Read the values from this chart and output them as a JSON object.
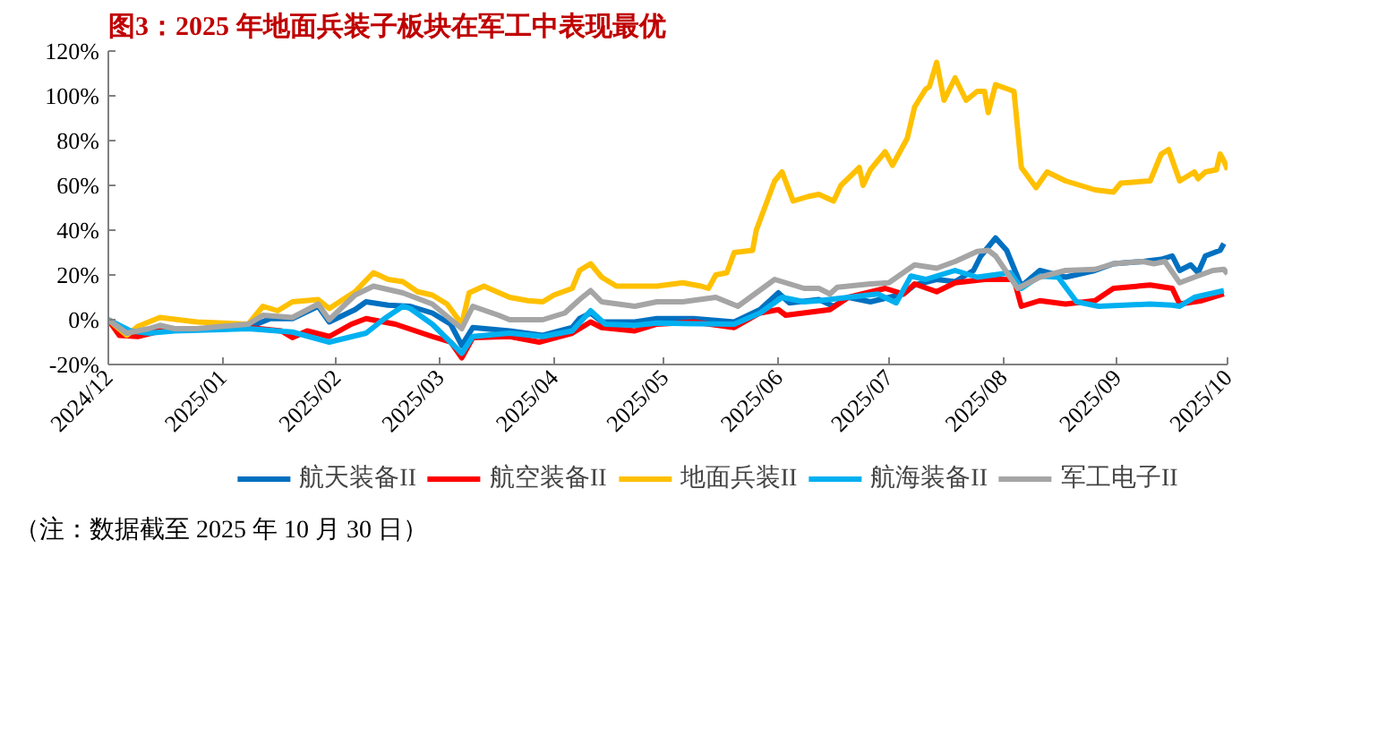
{
  "chart_data": {
    "type": "line",
    "title": "图3：2025 年地面兵装子板块在军工中表现最优",
    "annotations": [
      "（注：数据截至 2025 年 10 月 30 日）"
    ],
    "xlim": [
      "2024-12-01",
      "2025-10-01"
    ],
    "xticks": [
      {
        "value": "2024-12-01",
        "label": "2024/12"
      },
      {
        "value": "2025-01-01",
        "label": "2025/01"
      },
      {
        "value": "2025-02-01",
        "label": "2025/02"
      },
      {
        "value": "2025-03-01",
        "label": "2025/03"
      },
      {
        "value": "2025-04-01",
        "label": "2025/04"
      },
      {
        "value": "2025-05-01",
        "label": "2025/05"
      },
      {
        "value": "2025-06-01",
        "label": "2025/06"
      },
      {
        "value": "2025-07-01",
        "label": "2025/07"
      },
      {
        "value": "2025-08-01",
        "label": "2025/08"
      },
      {
        "value": "2025-09-01",
        "label": "2025/09"
      },
      {
        "value": "2025-10-01",
        "label": "2025/10"
      }
    ],
    "ylim": [
      -20,
      120
    ],
    "yticks": [
      {
        "value": -20,
        "label": "-20%"
      },
      {
        "value": 0,
        "label": "0%"
      },
      {
        "value": 20,
        "label": "20%"
      },
      {
        "value": 40,
        "label": "40%"
      },
      {
        "value": 60,
        "label": "60%"
      },
      {
        "value": 80,
        "label": "80%"
      },
      {
        "value": 100,
        "label": "100%"
      },
      {
        "value": 120,
        "label": "120%"
      }
    ],
    "legend": "bottom",
    "series": [
      {
        "name": "航天装备II",
        "color": "#0070c0",
        "x": [
          "2024-12-01",
          "2024-12-07",
          "2024-12-15",
          "2025-01-08",
          "2025-01-14",
          "2025-01-20",
          "2025-01-27",
          "2025-01-30",
          "2025-02-06",
          "2025-02-09",
          "2025-02-15",
          "2025-02-21",
          "2025-02-27",
          "2025-03-04",
          "2025-03-07",
          "2025-03-10",
          "2025-03-20",
          "2025-03-29",
          "2025-04-06",
          "2025-04-08",
          "2025-04-11",
          "2025-04-14",
          "2025-04-23",
          "2025-04-29",
          "2025-05-09",
          "2025-05-20",
          "2025-05-27",
          "2025-06-01",
          "2025-06-04",
          "2025-06-12",
          "2025-06-16",
          "2025-06-20",
          "2025-06-26",
          "2025-07-05",
          "2025-07-08",
          "2025-07-14",
          "2025-07-19",
          "2025-07-24",
          "2025-07-26",
          "2025-07-30",
          "2025-08-02",
          "2025-08-06",
          "2025-08-11",
          "2025-08-18",
          "2025-08-26",
          "2025-08-31",
          "2025-09-08",
          "2025-09-13",
          "2025-09-16",
          "2025-09-18",
          "2025-09-21",
          "2025-09-23",
          "2025-09-25",
          "2025-09-29",
          "2025-09-30"
        ],
        "values": [
          0,
          -7,
          -5,
          -3.5,
          0.5,
          0.5,
          6,
          -1,
          4.5,
          8,
          6.5,
          6,
          3,
          -2,
          -11.5,
          -3.5,
          -5,
          -7,
          -3.5,
          0.5,
          3,
          -1,
          -1,
          0.5,
          0.5,
          -1,
          4.5,
          12,
          7.5,
          9,
          6,
          10,
          8,
          11.5,
          15.5,
          18,
          17,
          22,
          28.5,
          36.5,
          31,
          15,
          22,
          19,
          22,
          25,
          26,
          27,
          28.5,
          22,
          24.5,
          21,
          28.5,
          31,
          34
        ]
      },
      {
        "name": "航空装备II",
        "color": "#ff0000",
        "x": [
          "2024-12-01",
          "2024-12-04",
          "2024-12-09",
          "2024-12-15",
          "2025-01-08",
          "2025-01-17",
          "2025-01-20",
          "2025-01-24",
          "2025-01-30",
          "2025-02-05",
          "2025-02-09",
          "2025-02-17",
          "2025-02-27",
          "2025-03-04",
          "2025-03-07",
          "2025-03-10",
          "2025-03-20",
          "2025-03-28",
          "2025-04-06",
          "2025-04-11",
          "2025-04-14",
          "2025-04-23",
          "2025-04-29",
          "2025-05-09",
          "2025-05-20",
          "2025-05-27",
          "2025-06-01",
          "2025-06-03",
          "2025-06-15",
          "2025-06-20",
          "2025-06-30",
          "2025-07-05",
          "2025-07-08",
          "2025-07-14",
          "2025-07-19",
          "2025-07-27",
          "2025-08-04",
          "2025-08-06",
          "2025-08-11",
          "2025-08-18",
          "2025-08-26",
          "2025-08-31",
          "2025-09-10",
          "2025-09-16",
          "2025-09-18",
          "2025-09-24",
          "2025-09-30"
        ],
        "values": [
          0,
          -7,
          -7.5,
          -5,
          -3.5,
          -5,
          -8,
          -5,
          -7.5,
          -2,
          0.5,
          -2,
          -7.5,
          -10,
          -17,
          -8,
          -7.5,
          -10,
          -6,
          -1,
          -3.5,
          -5,
          -2,
          -1,
          -3.5,
          3,
          4.5,
          2,
          4.5,
          10,
          14,
          11.5,
          16,
          12.5,
          16.5,
          18,
          18,
          6,
          8.5,
          7,
          8.5,
          14,
          15.5,
          14,
          7,
          8.5,
          11.5
        ]
      },
      {
        "name": "地面兵装II",
        "color": "#ffc000",
        "x": [
          "2024-12-01",
          "2024-12-06",
          "2024-12-09",
          "2024-12-15",
          "2024-12-25",
          "2025-01-08",
          "2025-01-12",
          "2025-01-16",
          "2025-01-20",
          "2025-01-27",
          "2025-01-30",
          "2025-02-06",
          "2025-02-11",
          "2025-02-15",
          "2025-02-19",
          "2025-02-23",
          "2025-02-27",
          "2025-03-03",
          "2025-03-07",
          "2025-03-09",
          "2025-03-13",
          "2025-03-20",
          "2025-03-25",
          "2025-03-29",
          "2025-04-01",
          "2025-04-06",
          "2025-04-08",
          "2025-04-11",
          "2025-04-14",
          "2025-04-18",
          "2025-04-29",
          "2025-05-06",
          "2025-05-11",
          "2025-05-13",
          "2025-05-15",
          "2025-05-18",
          "2025-05-20",
          "2025-05-25",
          "2025-05-26",
          "2025-05-31",
          "2025-06-02",
          "2025-06-05",
          "2025-06-09",
          "2025-06-12",
          "2025-06-16",
          "2025-06-18",
          "2025-06-23",
          "2025-06-24",
          "2025-06-26",
          "2025-06-30",
          "2025-07-02",
          "2025-07-06",
          "2025-07-08",
          "2025-07-11",
          "2025-07-12",
          "2025-07-14",
          "2025-07-16",
          "2025-07-19",
          "2025-07-22",
          "2025-07-25",
          "2025-07-27",
          "2025-07-28",
          "2025-07-30",
          "2025-08-04",
          "2025-08-06",
          "2025-08-10",
          "2025-08-13",
          "2025-08-18",
          "2025-08-22",
          "2025-08-26",
          "2025-08-31",
          "2025-09-02",
          "2025-09-10",
          "2025-09-13",
          "2025-09-15",
          "2025-09-18",
          "2025-09-22",
          "2025-09-23",
          "2025-09-25",
          "2025-09-28",
          "2025-09-29",
          "2025-09-30",
          "2025-10-01"
        ],
        "values": [
          0,
          -7,
          -3,
          1,
          -1,
          -2,
          6,
          4,
          8,
          9,
          5,
          12.5,
          21,
          18,
          17,
          12.5,
          11,
          7,
          -2,
          12,
          15,
          10,
          8.5,
          8,
          11,
          14,
          22,
          25,
          19,
          15,
          15,
          16.5,
          15,
          14,
          20,
          21,
          30,
          31,
          40,
          62,
          66,
          53,
          55,
          56,
          53,
          60,
          68,
          60,
          67,
          75,
          69,
          81,
          95,
          103,
          104,
          115,
          98,
          108,
          98,
          102,
          102,
          92.5,
          105,
          102,
          68,
          59,
          66,
          62,
          60,
          58,
          57,
          61,
          62,
          74,
          76,
          62,
          66,
          63,
          66,
          67,
          74,
          71,
          67
        ]
      },
      {
        "name": "航海装备II",
        "color": "#00b0f0",
        "x": [
          "2024-12-01",
          "2024-12-07",
          "2024-12-12",
          "2024-12-19",
          "2025-01-08",
          "2025-01-20",
          "2025-01-30",
          "2025-02-09",
          "2025-02-14",
          "2025-02-19",
          "2025-02-21",
          "2025-02-27",
          "2025-03-07",
          "2025-03-10",
          "2025-03-20",
          "2025-03-29",
          "2025-04-06",
          "2025-04-11",
          "2025-04-15",
          "2025-04-23",
          "2025-04-29",
          "2025-05-20",
          "2025-05-27",
          "2025-06-02",
          "2025-06-08",
          "2025-06-12",
          "2025-06-20",
          "2025-06-28",
          "2025-07-03",
          "2025-07-07",
          "2025-07-11",
          "2025-07-19",
          "2025-07-25",
          "2025-08-03",
          "2025-08-06",
          "2025-08-11",
          "2025-08-16",
          "2025-08-21",
          "2025-08-27",
          "2025-09-10",
          "2025-09-16",
          "2025-09-18",
          "2025-09-22",
          "2025-09-30"
        ],
        "values": [
          0,
          -5,
          -6,
          -5,
          -4,
          -5.5,
          -10,
          -6,
          0.5,
          6,
          5,
          -2,
          -15,
          -7.5,
          -6,
          -7.5,
          -5,
          4,
          -2,
          -2.5,
          -1.5,
          -2,
          3,
          10,
          8,
          8.5,
          10,
          11.5,
          7.5,
          19.5,
          18,
          22,
          19,
          21,
          14,
          19.5,
          19,
          8,
          6,
          7,
          6.5,
          6,
          10,
          13
        ]
      },
      {
        "name": "军工电子II",
        "color": "#a5a5a5",
        "x": [
          "2024-12-01",
          "2024-12-06",
          "2024-12-12",
          "2024-12-15",
          "2024-12-19",
          "2024-12-25",
          "2025-01-08",
          "2025-01-12",
          "2025-01-20",
          "2025-01-27",
          "2025-01-30",
          "2025-02-06",
          "2025-02-11",
          "2025-02-19",
          "2025-02-27",
          "2025-03-07",
          "2025-03-10",
          "2025-03-17",
          "2025-03-20",
          "2025-03-29",
          "2025-04-04",
          "2025-04-08",
          "2025-04-11",
          "2025-04-14",
          "2025-04-23",
          "2025-04-29",
          "2025-05-06",
          "2025-05-15",
          "2025-05-21",
          "2025-05-31",
          "2025-06-08",
          "2025-06-12",
          "2025-06-15",
          "2025-06-17",
          "2025-06-26",
          "2025-07-01",
          "2025-07-08",
          "2025-07-14",
          "2025-07-19",
          "2025-07-25",
          "2025-07-28",
          "2025-07-30",
          "2025-08-05",
          "2025-08-11",
          "2025-08-18",
          "2025-08-26",
          "2025-08-31",
          "2025-09-08",
          "2025-09-11",
          "2025-09-14",
          "2025-09-18",
          "2025-09-22",
          "2025-09-27",
          "2025-09-30",
          "2025-10-01"
        ],
        "values": [
          0,
          -6,
          -4,
          -2.5,
          -4,
          -4,
          -2,
          2,
          1,
          7,
          0,
          11,
          15,
          12,
          7,
          -4,
          6,
          2,
          0,
          0,
          3,
          9,
          13,
          8,
          6,
          8,
          8,
          10,
          6,
          18,
          14,
          14,
          11.5,
          14.5,
          16,
          16.5,
          24.5,
          23,
          26,
          30.5,
          31,
          28.5,
          14,
          19,
          22,
          22.5,
          25,
          26,
          25,
          26,
          16.5,
          19,
          22,
          22.5,
          20.5
        ]
      }
    ]
  }
}
